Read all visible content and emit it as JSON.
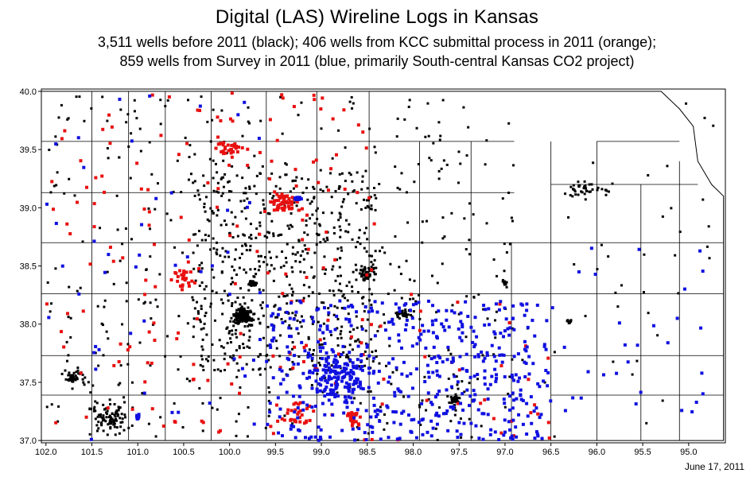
{
  "header": {
    "title": "Digital (LAS) Wireline Logs in Kansas",
    "subtitle_line1": "3,511 wells before 2011 (black); 406 wells from KCC submittal process in 2011 (orange);",
    "subtitle_line2": "859 wells from Survey in 2011 (blue, primarily South-central Kansas CO2 project)"
  },
  "footer": {
    "date": "June 17, 2011"
  },
  "map": {
    "lon_range": [
      -102.05,
      -94.6
    ],
    "lat_range": [
      36.98,
      40.02
    ],
    "x_ticks": [
      "102.0",
      "101.5",
      "101.0",
      "100.5",
      "100.0",
      "99.5",
      "99.0",
      "98.5",
      "98.0",
      "97.5",
      "97.0",
      "96.5",
      "96.0",
      "95.5",
      "95.0"
    ],
    "x_tick_values": [
      -102.0,
      -101.5,
      -101.0,
      -100.5,
      -100.0,
      -99.5,
      -99.0,
      -98.5,
      -98.0,
      -97.5,
      -97.0,
      -96.5,
      -96.0,
      -95.5,
      -95.0
    ],
    "y_ticks": [
      "40.0",
      "39.5",
      "39.0",
      "38.5",
      "38.0",
      "37.5",
      "37.0"
    ],
    "y_tick_values": [
      40.0,
      39.5,
      39.0,
      38.5,
      38.0,
      37.5,
      37.0
    ],
    "colors": {
      "pre_2011": "#000000",
      "kcc_2011": "#e81010",
      "survey_2011": "#1010e0",
      "county_lines": "#000000"
    },
    "series": [
      {
        "name": "3,511 wells before 2011 (black)",
        "color_key": "pre_2011"
      },
      {
        "name": "406 wells from KCC submittal process in 2011 (orange)",
        "color_key": "kcc_2011"
      },
      {
        "name": "859 wells from Survey in 2011 (blue, primarily South-central Kansas CO2 project)",
        "color_key": "survey_2011"
      }
    ]
  }
}
